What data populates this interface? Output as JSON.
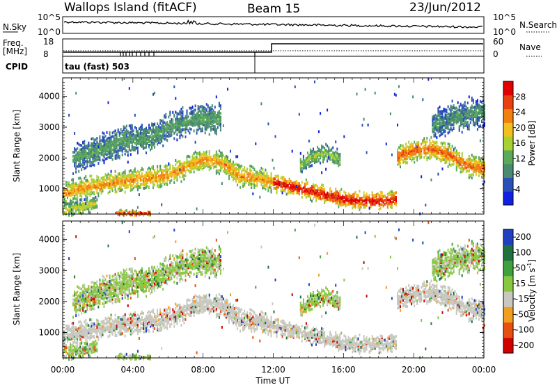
{
  "header": {
    "station": "Wallops Island (fitACF)",
    "beam": "Beam 15",
    "date": "23/Jun/2012"
  },
  "status_panels": {
    "nsky_label": "N.Sky",
    "nsearch_label": "N.Search",
    "nsky_ticks": [
      "10^5",
      "10^0"
    ],
    "nsearch_ticks": [
      "10^5",
      "10^0"
    ],
    "freq_label": "Freq.",
    "freq_unit": "[MHz]",
    "freq_ticks": [
      "18",
      "8"
    ],
    "nave_label": "Nave",
    "nave_ticks": [
      "60",
      "0"
    ],
    "cpid_label": "CPID",
    "cpid_value": "tau (fast) 503"
  },
  "colors": {
    "power_scale": [
      "#1020e0",
      "#2a50b8",
      "#4a8a70",
      "#5aaa5a",
      "#a8d030",
      "#f0c020",
      "#f08010",
      "#e84010",
      "#e00000"
    ],
    "velocity_scale": [
      "#d00000",
      "#e85010",
      "#f0a020",
      "#c8c8c0",
      "#88c840",
      "#40a040",
      "#207040",
      "#2040c0"
    ],
    "ground_scatter": "#c8c8c0"
  },
  "chart_data": [
    {
      "type": "heatmap",
      "name": "power",
      "xlabel": "Time UT",
      "ylabel": "Slant Range [km]",
      "x_ticks": [
        "00:00",
        "04:00",
        "08:00",
        "12:00",
        "16:00",
        "20:00",
        "00:00"
      ],
      "x_range_hours": [
        0,
        24
      ],
      "y_ticks": [
        1000,
        2000,
        3000,
        4000
      ],
      "ylim": [
        180,
        4600
      ],
      "colorbar_label": "Power [dB]",
      "colorbar_ticks": [
        4,
        8,
        12,
        16,
        20,
        24,
        28
      ],
      "bands": [
        {
          "t": [
            0,
            1,
            2,
            3,
            4,
            5,
            6,
            7,
            8,
            9,
            10,
            11,
            12
          ],
          "r": [
            900,
            1050,
            1150,
            1250,
            1330,
            1420,
            1500,
            1750,
            2000,
            1900,
            1500,
            1400,
            1250
          ],
          "width": 380,
          "level": 18
        },
        {
          "t": [
            12,
            13,
            14,
            15,
            16,
            17,
            18,
            19
          ],
          "r": [
            1250,
            1120,
            1000,
            850,
            720,
            650,
            660,
            700
          ],
          "width": 300,
          "level": 24
        },
        {
          "t": [
            0.5,
            2,
            3.5,
            5,
            6,
            7,
            8,
            9
          ],
          "r": [
            2000,
            2300,
            2600,
            2700,
            3050,
            3200,
            3350,
            3300
          ],
          "width": 500,
          "level": 9
        },
        {
          "t": [
            19,
            20,
            21,
            22,
            23,
            24
          ],
          "r": [
            2100,
            2300,
            2350,
            2150,
            1800,
            1700
          ],
          "width": 380,
          "level": 20
        },
        {
          "t": [
            21,
            22,
            23,
            24
          ],
          "r": [
            3100,
            3300,
            3450,
            3550
          ],
          "width": 500,
          "level": 8
        },
        {
          "t": [
            13.5,
            14.2,
            15,
            15.8
          ],
          "r": [
            1800,
            2100,
            2200,
            2000
          ],
          "width": 300,
          "level": 12
        },
        {
          "t": [
            0,
            1,
            2
          ],
          "r": [
            350,
            450,
            600
          ],
          "width": 250,
          "level": 14
        },
        {
          "t": [
            3,
            4,
            5
          ],
          "r": [
            230,
            250,
            240
          ],
          "width": 120,
          "level": 22
        }
      ]
    },
    {
      "type": "heatmap",
      "name": "velocity",
      "xlabel": "Time UT",
      "ylabel": "Slant Range [km]",
      "x_ticks": [
        "00:00",
        "04:00",
        "08:00",
        "12:00",
        "16:00",
        "20:00",
        "00:00"
      ],
      "y_ticks": [
        1000,
        2000,
        3000,
        4000
      ],
      "ylim": [
        180,
        4600
      ],
      "colorbar_label": "Velocity [m s^-1]",
      "colorbar_ticks": [
        200,
        100,
        50,
        15,
        -15,
        -50,
        -100,
        -200
      ]
    }
  ]
}
